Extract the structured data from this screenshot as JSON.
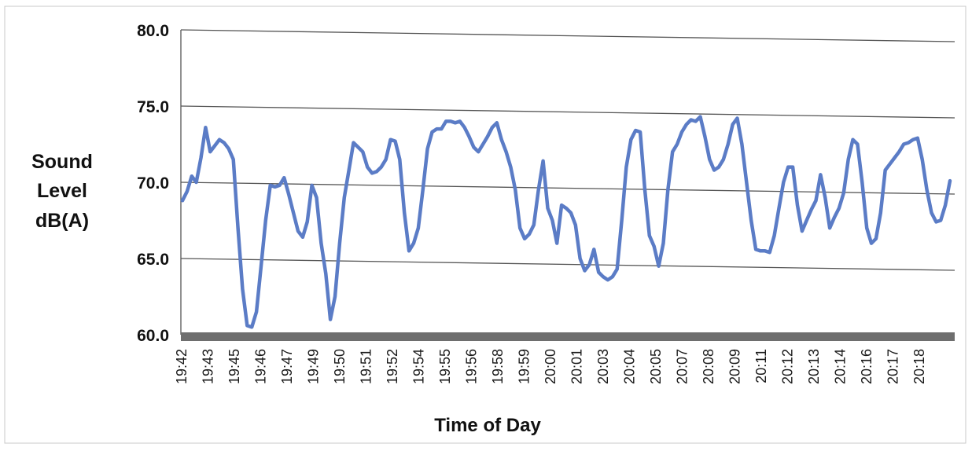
{
  "chart_data": {
    "type": "line",
    "title": "",
    "xlabel": "Time of Day",
    "ylabel_lines": [
      "Sound",
      "Level",
      "dB(A)"
    ],
    "ylim": [
      60,
      80
    ],
    "yticks": [
      "60.0",
      "65.0",
      "70.0",
      "75.0",
      "80.0"
    ],
    "grid": true,
    "x_tick_labels": [
      "19:42",
      "19:43",
      "19:45",
      "19:46",
      "19:47",
      "19:49",
      "19:50",
      "19:51",
      "19:52",
      "19:54",
      "19:55",
      "19:56",
      "19:58",
      "19:59",
      "20:00",
      "20:01",
      "20:03",
      "20:04",
      "20:05",
      "20:07",
      "20:08",
      "20:09",
      "20:11",
      "20:12",
      "20:13",
      "20:14",
      "20:16",
      "20:17",
      "20:18"
    ],
    "series": [
      {
        "color": "#5b7cc6",
        "values": [
          68.8,
          69.4,
          70.4,
          70.0,
          71.6,
          73.6,
          72.0,
          72.4,
          72.8,
          72.6,
          72.2,
          71.5,
          67.0,
          63.0,
          60.6,
          60.5,
          61.5,
          64.5,
          67.5,
          69.8,
          69.7,
          69.8,
          70.3,
          69.2,
          68.0,
          66.8,
          66.4,
          67.4,
          69.8,
          69.0,
          66.0,
          64.0,
          61.0,
          62.5,
          66.0,
          69.0,
          70.8,
          72.6,
          72.3,
          72.0,
          71.0,
          70.6,
          70.7,
          71.0,
          71.5,
          72.8,
          72.7,
          71.5,
          68.0,
          65.5,
          66.0,
          67.0,
          69.5,
          72.2,
          73.3,
          73.5,
          73.5,
          74.0,
          74.0,
          73.9,
          74.0,
          73.6,
          73.0,
          72.3,
          72.0,
          72.5,
          73.0,
          73.6,
          73.9,
          72.8,
          72.0,
          71.0,
          69.5,
          67.0,
          66.3,
          66.6,
          67.2,
          69.5,
          71.4,
          68.3,
          67.5,
          66.0,
          68.5,
          68.3,
          68.0,
          67.2,
          65.0,
          64.2,
          64.6,
          65.6,
          64.1,
          63.8,
          63.6,
          63.8,
          64.3,
          67.5,
          71.0,
          72.8,
          73.4,
          73.3,
          69.5,
          66.5,
          65.8,
          64.5,
          66.0,
          69.5,
          72.0,
          72.5,
          73.3,
          73.8,
          74.1,
          74.0,
          74.3,
          73.0,
          71.5,
          70.8,
          71.0,
          71.5,
          72.5,
          73.8,
          74.2,
          72.5,
          70.0,
          67.5,
          65.6,
          65.5,
          65.5,
          65.4,
          66.5,
          68.3,
          70.0,
          71.0,
          71.0,
          68.5,
          66.8,
          67.5,
          68.2,
          68.8,
          70.5,
          69.0,
          67.0,
          67.7,
          68.3,
          69.3,
          71.5,
          72.8,
          72.5,
          70.0,
          67.0,
          66.0,
          66.3,
          68.0,
          70.8,
          71.2,
          71.6,
          72.0,
          72.5,
          72.6,
          72.8,
          72.9,
          71.5,
          69.5,
          68.0,
          67.4,
          67.5,
          68.5,
          70.1
        ]
      }
    ]
  }
}
